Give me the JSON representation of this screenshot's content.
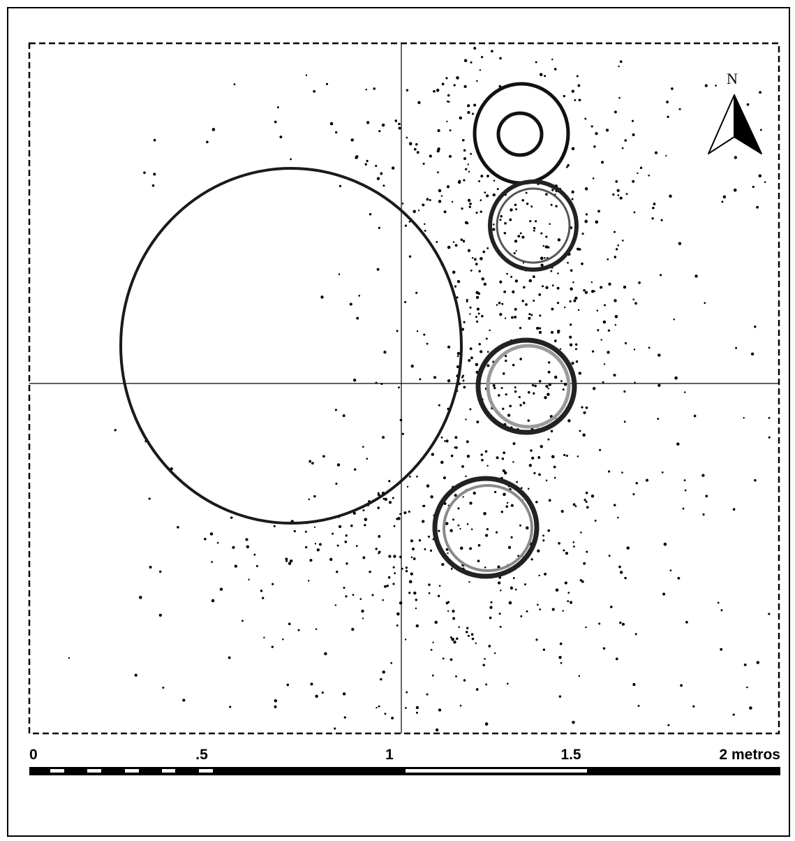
{
  "map": {
    "north_label": "N",
    "scale_bar": {
      "labels": [
        "0",
        ".5",
        "1",
        "1.5",
        "2 metros"
      ],
      "max_value": 2,
      "units": "metros"
    },
    "colors": {
      "ink": "#000000",
      "paper": "#ffffff",
      "ring_gray": "#9a9a9a"
    }
  }
}
